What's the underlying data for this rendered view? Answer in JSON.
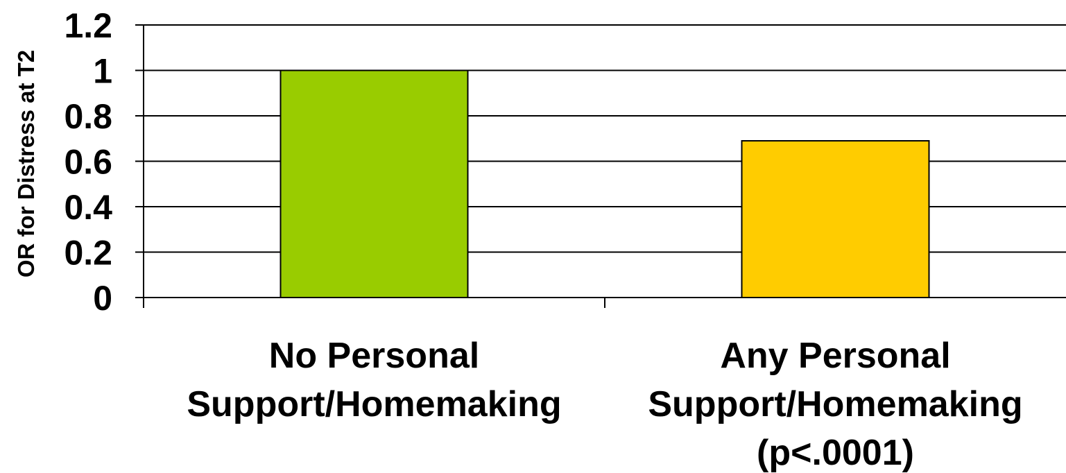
{
  "chart_data": {
    "type": "bar",
    "title": "",
    "xlabel": "",
    "ylabel": "OR for Distress at T2",
    "ylim": [
      0,
      1.2
    ],
    "yticks": [
      "0",
      "0.2",
      "0.4",
      "0.6",
      "0.8",
      "1",
      "1.2"
    ],
    "grid": true,
    "categories": [
      [
        "No Personal",
        "Support/Homemaking"
      ],
      [
        "Any Personal",
        "Support/Homemaking",
        "(p<.0001)"
      ]
    ],
    "values": [
      1.0,
      0.69
    ],
    "colors": [
      "#99cc00",
      "#ffcc00"
    ]
  }
}
